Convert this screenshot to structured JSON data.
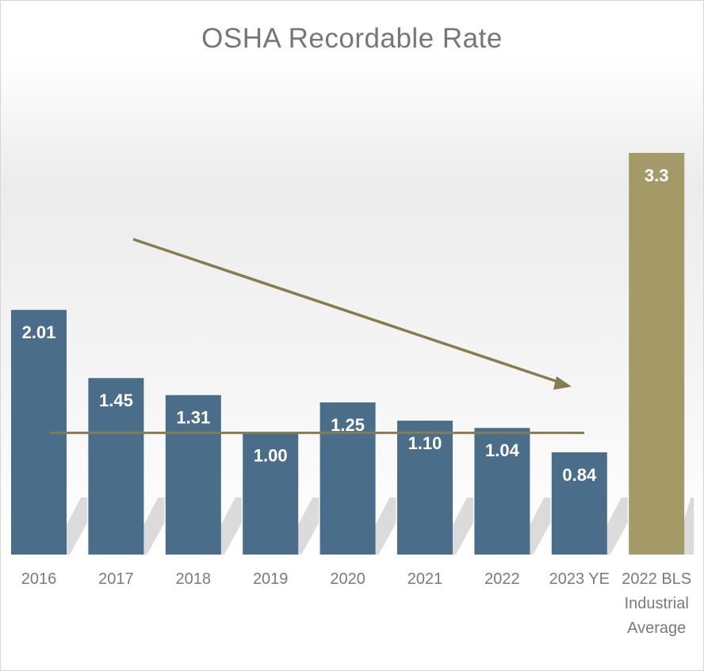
{
  "chart_data": {
    "type": "bar",
    "title": "OSHA Recordable Rate",
    "categories": [
      "2016",
      "2017",
      "2018",
      "2019",
      "2020",
      "2021",
      "2022",
      "2023 YE",
      "2022 BLS Industrial Average"
    ],
    "category_lines": [
      [
        "2016"
      ],
      [
        "2017"
      ],
      [
        "2018"
      ],
      [
        "2019"
      ],
      [
        "2020"
      ],
      [
        "2021"
      ],
      [
        "2022"
      ],
      [
        "2023 YE"
      ],
      [
        "2022 BLS",
        "Industrial",
        "Average"
      ]
    ],
    "values": [
      2.01,
      1.45,
      1.31,
      1.0,
      1.25,
      1.1,
      1.04,
      0.84,
      3.3
    ],
    "value_labels": [
      "2.01",
      "1.45",
      "1.31",
      "1.00",
      "1.25",
      "1.10",
      "1.04",
      "0.84",
      "3.3"
    ],
    "bar_colors": [
      "#4a6e8a",
      "#4a6e8a",
      "#4a6e8a",
      "#4a6e8a",
      "#4a6e8a",
      "#4a6e8a",
      "#4a6e8a",
      "#4a6e8a",
      "#a39a67"
    ],
    "reference_line": {
      "value": 1.0,
      "color": "#857c50"
    },
    "trend_arrow": {
      "color": "#857c50",
      "direction": "down"
    },
    "ylim": [
      0,
      3.3
    ],
    "xlabel": "",
    "ylabel": "",
    "grid": false,
    "legend": "none"
  }
}
